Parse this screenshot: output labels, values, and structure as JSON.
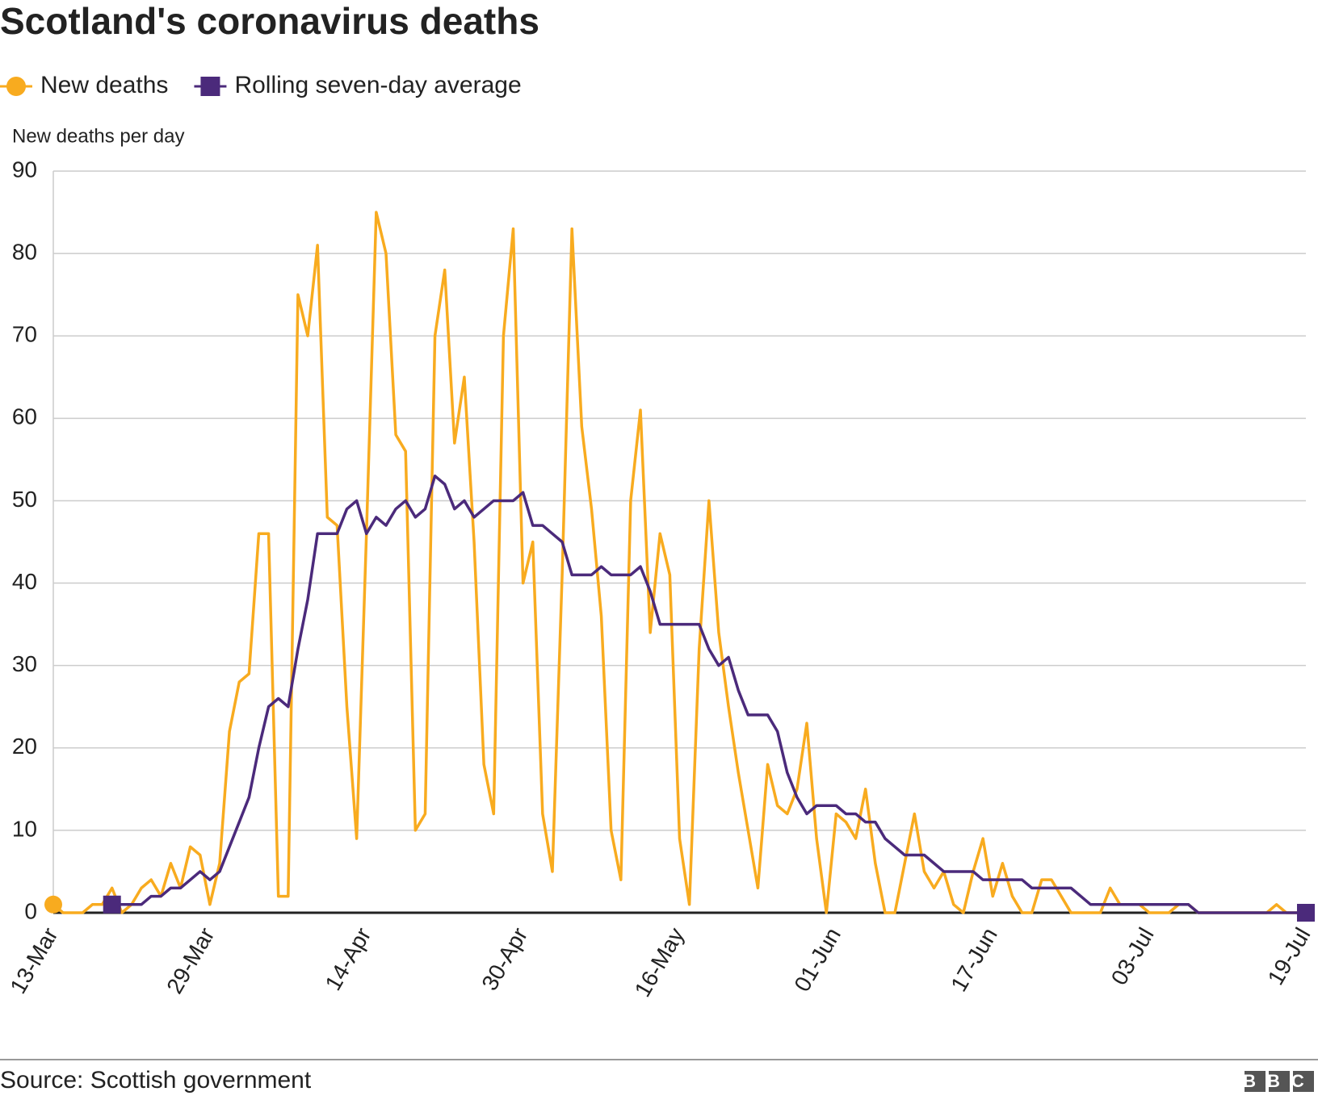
{
  "chart_data": {
    "type": "line",
    "title": "Scotland's coronavirus deaths",
    "y_label": "New deaths per day",
    "source": "Source: Scottish government",
    "logo": "BBC",
    "categories": [
      "13-Mar",
      null,
      null,
      null,
      null,
      null,
      null,
      null,
      null,
      null,
      null,
      null,
      null,
      null,
      null,
      null,
      "29-Mar",
      null,
      null,
      null,
      null,
      null,
      null,
      null,
      null,
      null,
      null,
      null,
      null,
      null,
      null,
      null,
      "14-Apr",
      null,
      null,
      null,
      null,
      null,
      null,
      null,
      null,
      null,
      null,
      null,
      null,
      null,
      null,
      null,
      "30-Apr",
      null,
      null,
      null,
      null,
      null,
      null,
      null,
      null,
      null,
      null,
      null,
      null,
      null,
      null,
      null,
      "16-May",
      null,
      null,
      null,
      null,
      null,
      null,
      null,
      null,
      null,
      null,
      null,
      null,
      null,
      null,
      null,
      "01-Jun",
      null,
      null,
      null,
      null,
      null,
      null,
      null,
      null,
      null,
      null,
      null,
      null,
      null,
      null,
      null,
      "17-Jun",
      null,
      null,
      null,
      null,
      null,
      null,
      null,
      null,
      null,
      null,
      null,
      null,
      null,
      null,
      null,
      "03-Jul",
      null,
      null,
      null,
      null,
      null,
      null,
      null,
      null,
      null,
      null,
      null,
      null,
      null,
      null,
      null,
      "19-Jul"
    ],
    "series": [
      {
        "name": "New deaths",
        "color": "#f8ab1f",
        "marker": "circle",
        "values": [
          1,
          0,
          0,
          0,
          1,
          1,
          3,
          0,
          1,
          3,
          4,
          2,
          6,
          3,
          8,
          7,
          1,
          6,
          22,
          28,
          29,
          46,
          46,
          2,
          2,
          75,
          70,
          81,
          48,
          47,
          25,
          9,
          46,
          85,
          80,
          58,
          56,
          10,
          12,
          70,
          78,
          57,
          65,
          45,
          18,
          12,
          70,
          83,
          40,
          45,
          12,
          5,
          41,
          83,
          59,
          49,
          36,
          10,
          4,
          50,
          61,
          34,
          46,
          41,
          9,
          1,
          32,
          50,
          34,
          25,
          17,
          10,
          3,
          18,
          13,
          12,
          15,
          23,
          9,
          0,
          12,
          11,
          9,
          15,
          6,
          0,
          0,
          6,
          12,
          5,
          3,
          5,
          1,
          0,
          5,
          9,
          2,
          6,
          2,
          0,
          0,
          4,
          4,
          2,
          0,
          0,
          0,
          0,
          3,
          1,
          1,
          1,
          0,
          0,
          0,
          1,
          1,
          0,
          0,
          0,
          0,
          0,
          0,
          0,
          0,
          1,
          0,
          0,
          0
        ]
      },
      {
        "name": "Rolling seven-day average",
        "color": "#4b2a7b",
        "marker": "square",
        "values": [
          null,
          null,
          null,
          null,
          null,
          null,
          1,
          1,
          1,
          1,
          2,
          2,
          3,
          3,
          4,
          5,
          4,
          5,
          8,
          11,
          14,
          20,
          25,
          26,
          25,
          32,
          38,
          46,
          46,
          46,
          49,
          50,
          46,
          48,
          47,
          49,
          50,
          48,
          49,
          53,
          52,
          49,
          50,
          48,
          49,
          50,
          50,
          50,
          51,
          47,
          47,
          46,
          45,
          41,
          41,
          41,
          42,
          41,
          41,
          41,
          42,
          39,
          35,
          35,
          35,
          35,
          35,
          32,
          30,
          31,
          27,
          24,
          24,
          24,
          22,
          17,
          14,
          12,
          13,
          13,
          13,
          12,
          12,
          11,
          11,
          9,
          8,
          7,
          7,
          7,
          6,
          5,
          5,
          5,
          5,
          4,
          4,
          4,
          4,
          4,
          3,
          3,
          3,
          3,
          3,
          2,
          1,
          1,
          1,
          1,
          1,
          1,
          1,
          1,
          1,
          1,
          1,
          0,
          0,
          0,
          0,
          0,
          0,
          0,
          0,
          0,
          0,
          0,
          0
        ]
      }
    ],
    "ylim": [
      0,
      90
    ],
    "yticks": [
      0,
      10,
      20,
      30,
      40,
      50,
      60,
      70,
      80,
      90
    ],
    "grid": true
  }
}
